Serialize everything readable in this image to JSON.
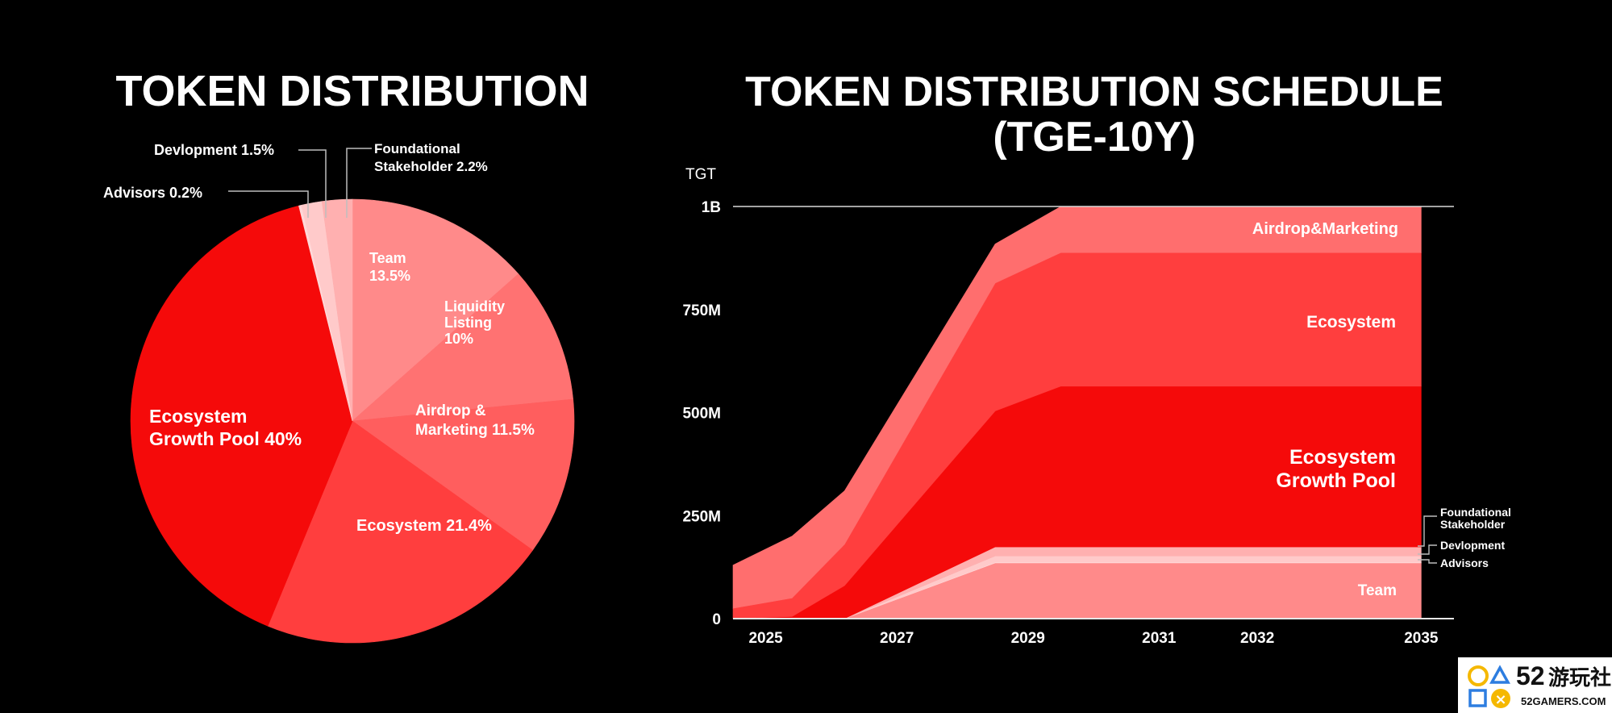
{
  "chart_data": [
    {
      "type": "pie",
      "title": "TOKEN DISTRIBUTION",
      "slices": [
        {
          "name": "Team",
          "value": 13.5,
          "label": [
            "Team",
            "13.5%"
          ],
          "color": "#FF8A8A"
        },
        {
          "name": "Liquidity Listing",
          "value": 10,
          "label": [
            "Liquidity",
            "Listing",
            "10%"
          ],
          "color": "#FF7272"
        },
        {
          "name": "Airdrop & Marketing",
          "value": 11.5,
          "label": [
            "Airdrop &",
            "Marketing 11.5%"
          ],
          "color": "#FF5E5E"
        },
        {
          "name": "Ecosystem",
          "value": 21.4,
          "label": [
            "Ecosystem 21.4%"
          ],
          "color": "#FF3E3E"
        },
        {
          "name": "Ecosystem Growth Pool",
          "value": 40,
          "label": [
            "Ecosystem",
            "Growth Pool 40%"
          ],
          "color": "#F50A0A"
        },
        {
          "name": "Advisors",
          "value": 0.2,
          "label": [
            "Advisors 0.2%"
          ],
          "color": "#FFD8D8"
        },
        {
          "name": "Devlopment",
          "value": 1.5,
          "label": [
            "Devlopment 1.5%"
          ],
          "color": "#FFCACA"
        },
        {
          "name": "Foundational Stakeholder",
          "value": 2.2,
          "label": [
            "Foundational",
            "Stakeholder 2.2%"
          ],
          "color": "#FFB0B0"
        }
      ]
    },
    {
      "type": "area",
      "title": [
        "TOKEN DISTRIBUTION SCHEDULE",
        "(TGE-10Y)"
      ],
      "unit_label": "TGT",
      "y_ticks": [
        {
          "v": 0,
          "label": "0"
        },
        {
          "v": 250,
          "label": "250M"
        },
        {
          "v": 500,
          "label": "500M"
        },
        {
          "v": 750,
          "label": "750M"
        },
        {
          "v": 1000,
          "label": "1B"
        }
      ],
      "x_ticks": [
        {
          "v": 2025,
          "label": "2025"
        },
        {
          "v": 2027,
          "label": "2027"
        },
        {
          "v": 2029,
          "label": "2029"
        },
        {
          "v": 2031,
          "label": "2031"
        },
        {
          "v": 2032.5,
          "label": "2032"
        },
        {
          "v": 2035,
          "label": "2035"
        }
      ],
      "xlim": [
        2024.5,
        2035.5
      ],
      "ylim": [
        0,
        1000
      ],
      "x": [
        2024.5,
        2025.4,
        2026.2,
        2028.5,
        2029.5,
        2035.0
      ],
      "series": [
        {
          "name": "Team",
          "values": [
            0,
            0,
            0,
            135,
            135,
            135
          ],
          "color": "#FF8A8A"
        },
        {
          "name": "Advisors",
          "values": [
            0,
            0,
            0,
            2,
            2,
            2
          ],
          "color": "#FFD8D8"
        },
        {
          "name": "Devlopment",
          "values": [
            0,
            0,
            0,
            15,
            15,
            15
          ],
          "color": "#FFCACA"
        },
        {
          "name": "Foundational Stakeholder",
          "values": [
            0,
            0,
            0,
            22,
            22,
            22
          ],
          "color": "#FFB0B0"
        },
        {
          "name": "Ecosystem Growth Pool",
          "values": [
            0,
            5,
            80,
            330,
            390,
            390
          ],
          "color": "#F50A0A"
        },
        {
          "name": "Ecosystem",
          "values": [
            25,
            45,
            100,
            310,
            324,
            324
          ],
          "color": "#FF3E3E"
        },
        {
          "name": "Airdrop&Marketing",
          "values": [
            105,
            150,
            130,
            95,
            112,
            112
          ],
          "color": "#FF6E6E"
        }
      ],
      "series_labels": [
        {
          "name": "Airdrop&Marketing",
          "lines": [
            "Airdrop&Marketing"
          ]
        },
        {
          "name": "Ecosystem",
          "lines": [
            "Ecosystem"
          ]
        },
        {
          "name": "Ecosystem Growth Pool",
          "lines": [
            "Ecosystem",
            "Growth Pool"
          ]
        },
        {
          "name": "Team",
          "lines": [
            "Team"
          ]
        }
      ],
      "small_labels": [
        {
          "name": "Foundational Stakeholder",
          "lines": [
            "Foundational",
            "Stakeholder"
          ]
        },
        {
          "name": "Devlopment",
          "lines": [
            "Devlopment"
          ]
        },
        {
          "name": "Advisors",
          "lines": [
            "Advisors"
          ]
        }
      ]
    }
  ],
  "watermark": {
    "number": "52",
    "name": "游玩社区",
    "site": "52GAMERS.COM"
  }
}
